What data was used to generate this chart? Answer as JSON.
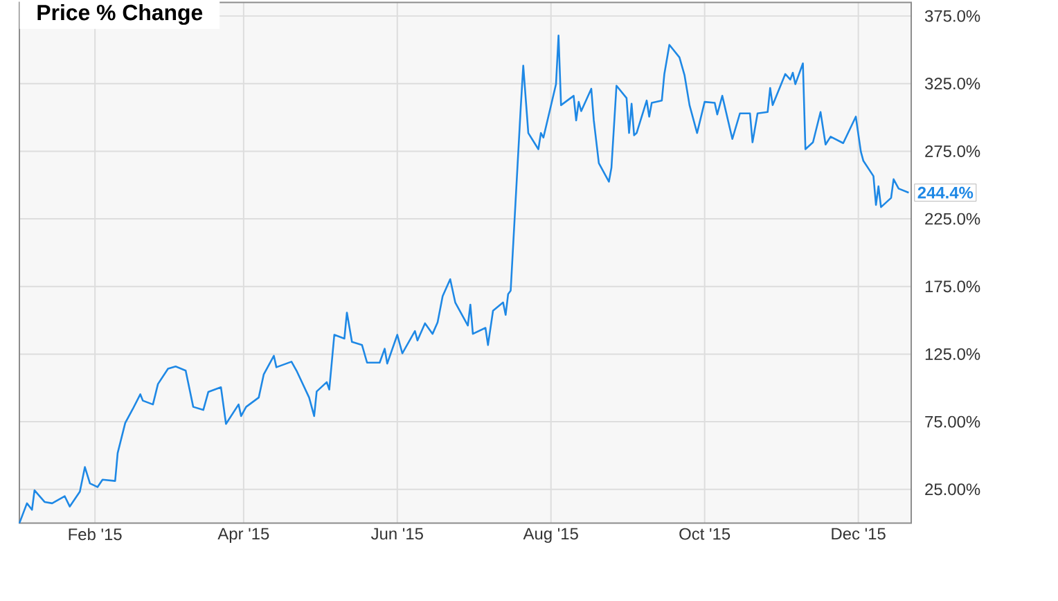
{
  "chart_data": {
    "type": "line",
    "title": "Price % Change",
    "x": [
      "2015-01-02",
      "2015-01-05",
      "2015-01-07",
      "2015-01-08",
      "2015-01-12",
      "2015-01-15",
      "2015-01-20",
      "2015-01-22",
      "2015-01-26",
      "2015-01-28",
      "2015-01-30",
      "2015-02-02",
      "2015-02-04",
      "2015-02-09",
      "2015-02-10",
      "2015-02-13",
      "2015-02-16",
      "2015-02-19",
      "2015-02-20",
      "2015-02-24",
      "2015-02-26",
      "2015-03-02",
      "2015-03-05",
      "2015-03-09",
      "2015-03-12",
      "2015-03-16",
      "2015-03-18",
      "2015-03-23",
      "2015-03-25",
      "2015-03-30",
      "2015-03-31",
      "2015-04-02",
      "2015-04-07",
      "2015-04-09",
      "2015-04-13",
      "2015-04-14",
      "2015-04-20",
      "2015-04-22",
      "2015-04-27",
      "2015-04-29",
      "2015-04-30",
      "2015-05-04",
      "2015-05-05",
      "2015-05-07",
      "2015-05-11",
      "2015-05-12",
      "2015-05-14",
      "2015-05-18",
      "2015-05-20",
      "2015-05-25",
      "2015-05-27",
      "2015-05-28",
      "2015-06-01",
      "2015-06-03",
      "2015-06-08",
      "2015-06-09",
      "2015-06-12",
      "2015-06-15",
      "2015-06-17",
      "2015-06-19",
      "2015-06-22",
      "2015-06-24",
      "2015-06-29",
      "2015-06-30",
      "2015-07-01",
      "2015-07-06",
      "2015-07-07",
      "2015-07-09",
      "2015-07-13",
      "2015-07-14",
      "2015-07-15",
      "2015-07-16",
      "2015-07-20",
      "2015-07-21",
      "2015-07-23",
      "2015-07-27",
      "2015-07-28",
      "2015-07-29",
      "2015-08-03",
      "2015-08-04",
      "2015-08-05",
      "2015-08-10",
      "2015-08-11",
      "2015-08-12",
      "2015-08-13",
      "2015-08-17",
      "2015-08-18",
      "2015-08-20",
      "2015-08-24",
      "2015-08-25",
      "2015-08-27",
      "2015-08-31",
      "2015-09-01",
      "2015-09-02",
      "2015-09-03",
      "2015-09-04",
      "2015-09-08",
      "2015-09-09",
      "2015-09-10",
      "2015-09-14",
      "2015-09-15",
      "2015-09-17",
      "2015-09-21",
      "2015-09-23",
      "2015-09-25",
      "2015-09-28",
      "2015-10-01",
      "2015-10-05",
      "2015-10-06",
      "2015-10-08",
      "2015-10-12",
      "2015-10-15",
      "2015-10-19",
      "2015-10-20",
      "2015-10-22",
      "2015-10-26",
      "2015-10-27",
      "2015-10-28",
      "2015-11-02",
      "2015-11-04",
      "2015-11-05",
      "2015-11-06",
      "2015-11-09",
      "2015-11-10",
      "2015-11-13",
      "2015-11-16",
      "2015-11-18",
      "2015-11-20",
      "2015-11-25",
      "2015-11-30",
      "2015-12-02",
      "2015-12-03",
      "2015-12-07",
      "2015-12-08",
      "2015-12-09",
      "2015-12-10",
      "2015-12-14",
      "2015-12-15",
      "2015-12-17",
      "2015-12-21"
    ],
    "series": [
      {
        "color": "#1e88e5",
        "values": [
          0,
          14.7,
          9.9,
          24.3,
          15.7,
          14.7,
          19.9,
          12.3,
          23.3,
          41.5,
          29.4,
          26.7,
          32.2,
          31.2,
          51.8,
          74.1,
          84.4,
          95.3,
          90.6,
          87.8,
          102.9,
          114.2,
          115.9,
          112.8,
          86,
          83.7,
          97.1,
          100.5,
          73.4,
          87.8,
          79.2,
          86,
          92.9,
          110.1,
          123.8,
          115.3,
          119.4,
          112.8,
          92.9,
          79.2,
          97.4,
          104.3,
          98.8,
          139.3,
          136.5,
          155.7,
          134.1,
          131.7,
          118.7,
          118.7,
          129,
          118,
          139.3,
          125.6,
          142.1,
          135.1,
          147.8,
          140,
          148.5,
          167.8,
          180.4,
          163.2,
          146.1,
          161.6,
          140,
          144.4,
          131.7,
          157.1,
          163.2,
          154,
          169.4,
          171.9,
          307.4,
          338.3,
          288.5,
          276.5,
          288.5,
          285.1,
          324.6,
          360.6,
          309.1,
          316,
          297.8,
          311.5,
          304.7,
          321.2,
          297.8,
          266.2,
          252.5,
          262.8,
          323.5,
          314.3,
          288.5,
          310.1,
          286.8,
          288.5,
          312.5,
          300.6,
          310.8,
          312.5,
          332.1,
          353.7,
          344.4,
          331.4,
          309.1,
          288.5,
          311.5,
          310.8,
          302.2,
          316,
          284.1,
          303,
          303,
          281.6,
          303,
          304,
          321.8,
          309.1,
          332.1,
          328,
          333.1,
          324.6,
          340,
          276.5,
          281.6,
          304,
          280,
          285.8,
          281,
          300.6,
          274.8,
          267.9,
          256.6,
          235.3,
          249.1,
          233.7,
          240.5,
          254.3,
          247.4,
          244.4
        ]
      }
    ],
    "xlim": [
      "2015-01-02",
      "2015-12-22"
    ],
    "xticks": [
      {
        "value": "2015-02-01",
        "label": "Feb '15"
      },
      {
        "value": "2015-04-01",
        "label": "Apr '15"
      },
      {
        "value": "2015-06-01",
        "label": "Jun '15"
      },
      {
        "value": "2015-08-01",
        "label": "Aug '15"
      },
      {
        "value": "2015-10-01",
        "label": "Oct '15"
      },
      {
        "value": "2015-12-01",
        "label": "Dec '15"
      }
    ],
    "ylim": [
      0,
      385
    ],
    "yticks": [
      {
        "value": 25,
        "label": "25.00%"
      },
      {
        "value": 75,
        "label": "75.00%"
      },
      {
        "value": 125,
        "label": "125.0%"
      },
      {
        "value": 175,
        "label": "175.0%"
      },
      {
        "value": 225,
        "label": "225.0%"
      },
      {
        "value": 275,
        "label": "275.0%"
      },
      {
        "value": 325,
        "label": "325.0%"
      },
      {
        "value": 375,
        "label": "375.0%"
      }
    ],
    "grid": true,
    "annotations": [
      {
        "text": "244.4%",
        "x": "2015-12-21",
        "y": 244.4
      }
    ]
  }
}
